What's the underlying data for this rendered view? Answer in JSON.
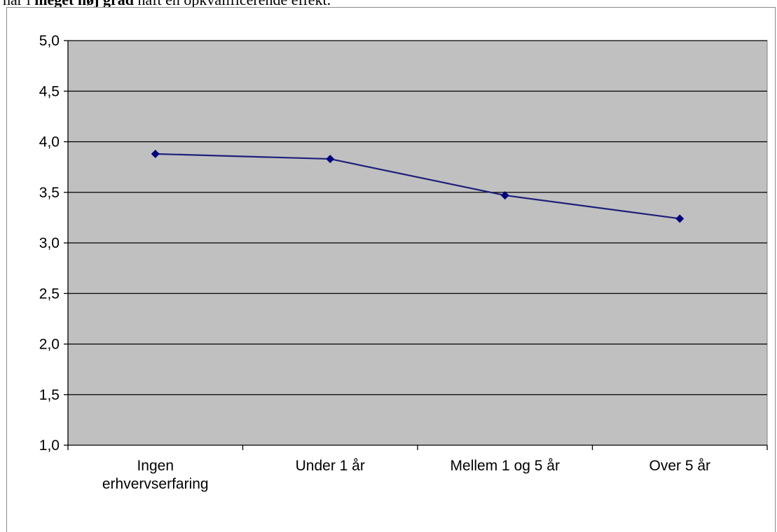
{
  "caption": {
    "prefix": "har i ",
    "bold": "meget høj grad",
    "suffix": " haft en opkvalificerende effekt."
  },
  "colors": {
    "plot_background": "#c0c0c0",
    "gridline": "#000000",
    "series_line": "#1f1f7a",
    "marker": "#000080",
    "frame_border": "#8a8a8a"
  },
  "chart_data": {
    "type": "line",
    "title": "",
    "xlabel": "",
    "ylabel": "",
    "categories": [
      [
        "Ingen",
        "erhvervserfaring"
      ],
      [
        "Under 1 år"
      ],
      [
        "Mellem 1 og 5 år"
      ],
      [
        "Over 5 år"
      ]
    ],
    "series": [
      {
        "values": [
          3.88,
          3.83,
          3.47,
          3.24
        ],
        "marker": "diamond"
      }
    ],
    "ylim": [
      1.0,
      5.0
    ],
    "yticks": [
      1.0,
      1.5,
      2.0,
      2.5,
      3.0,
      3.5,
      4.0,
      4.5,
      5.0
    ],
    "ytick_labels": [
      "1,0",
      "1,5",
      "2,0",
      "2,5",
      "3,0",
      "3,5",
      "4,0",
      "4,5",
      "5,0"
    ],
    "grid": "horizontal",
    "legend": "none"
  }
}
